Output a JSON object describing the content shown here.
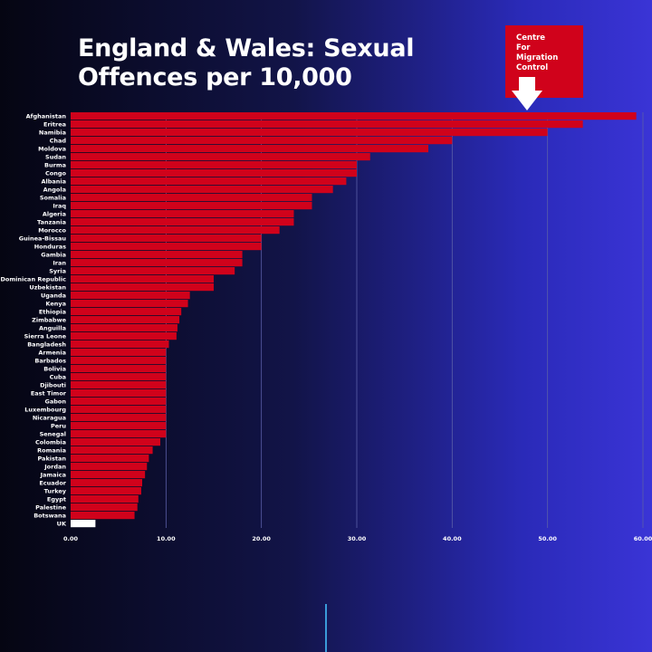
{
  "title_lines": [
    "England & Wales: Sexual",
    "Offences per 10,000"
  ],
  "logo": {
    "lines": [
      "Centre",
      "For",
      "Migration",
      "Control"
    ],
    "icon": "down-arrow-icon",
    "color": "#d0021b"
  },
  "colors": {
    "bar": "#d0021b",
    "highlight": "#ffffff",
    "grid": "#5b5fa8"
  },
  "chart_data": {
    "type": "bar",
    "orientation": "horizontal",
    "title": "England & Wales: Sexual Offences per 10,000",
    "xlabel": "",
    "ylabel": "",
    "xlim": [
      0,
      60
    ],
    "xticks": [
      "0.00",
      "10.00",
      "20.00",
      "30.00",
      "40.00",
      "50.00",
      "60.00"
    ],
    "grid": true,
    "legend": "none",
    "categories": [
      "Afghanistan",
      "Eritrea",
      "Namibia",
      "Chad",
      "Moldova",
      "Sudan",
      "Burma",
      "Congo",
      "Albania",
      "Angola",
      "Somalia",
      "Iraq",
      "Algeria",
      "Tanzania",
      "Morocco",
      "Guinea-Bissau",
      "Honduras",
      "Gambia",
      "Iran",
      "Syria",
      "Dominican Republic",
      "Uzbekistan",
      "Uganda",
      "Kenya",
      "Ethiopia",
      "Zimbabwe",
      "Anguilla",
      "Sierra Leone",
      "Bangladesh",
      "Armenia",
      "Barbados",
      "Bolivia",
      "Cuba",
      "Djibouti",
      "East Timor",
      "Gabon",
      "Luxembourg",
      "Nicaragua",
      "Peru",
      "Senegal",
      "Colombia",
      "Romania",
      "Pakistan",
      "Jordan",
      "Jamaica",
      "Ecuador",
      "Turkey",
      "Egypt",
      "Palestine",
      "Botswana",
      "UK"
    ],
    "values": [
      59.3,
      53.7,
      50.0,
      40.0,
      37.5,
      31.4,
      30.0,
      30.0,
      28.9,
      27.5,
      25.3,
      25.3,
      23.4,
      23.4,
      21.9,
      20.0,
      20.0,
      18.0,
      18.0,
      17.2,
      15.0,
      15.0,
      12.5,
      12.3,
      11.6,
      11.4,
      11.2,
      11.1,
      10.3,
      10.0,
      10.0,
      10.0,
      10.0,
      10.0,
      10.0,
      10.0,
      10.0,
      10.0,
      10.0,
      10.0,
      9.4,
      8.6,
      8.2,
      8.0,
      7.8,
      7.5,
      7.4,
      7.1,
      7.0,
      6.7,
      2.6
    ],
    "highlight_category": "UK"
  }
}
